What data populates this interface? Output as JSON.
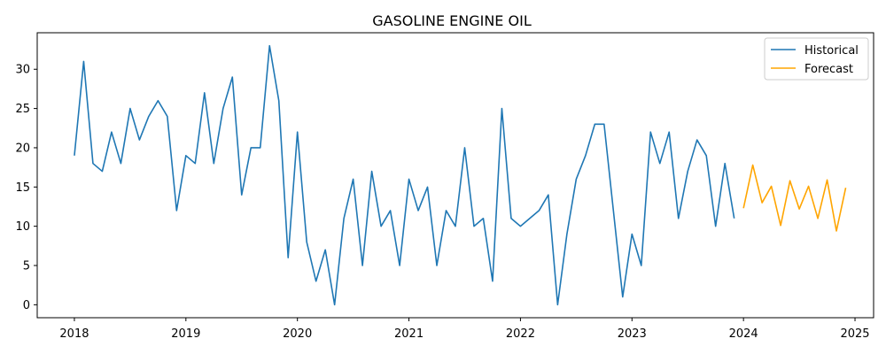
{
  "chart_data": {
    "type": "line",
    "title": "GASOLINE ENGINE OIL",
    "xlabel": "",
    "ylabel": "",
    "xlim": [
      "2017-09-01",
      "2025-03-01"
    ],
    "ylim": [
      -1.65,
      34.65
    ],
    "x_ticks": [
      "2018",
      "2019",
      "2020",
      "2021",
      "2022",
      "2023",
      "2024",
      "2025"
    ],
    "y_ticks": [
      0,
      5,
      10,
      15,
      20,
      25,
      30
    ],
    "grid": false,
    "legend": "top-right",
    "series": [
      {
        "name": "Historical",
        "color": "#1f77b4",
        "x": [
          "2018-01",
          "2018-02",
          "2018-03",
          "2018-04",
          "2018-05",
          "2018-06",
          "2018-07",
          "2018-08",
          "2018-09",
          "2018-10",
          "2018-11",
          "2018-12",
          "2019-01",
          "2019-02",
          "2019-03",
          "2019-04",
          "2019-05",
          "2019-06",
          "2019-07",
          "2019-08",
          "2019-09",
          "2019-10",
          "2019-11",
          "2019-12",
          "2020-01",
          "2020-02",
          "2020-03",
          "2020-04",
          "2020-05",
          "2020-06",
          "2020-07",
          "2020-08",
          "2020-09",
          "2020-10",
          "2020-11",
          "2020-12",
          "2021-01",
          "2021-02",
          "2021-03",
          "2021-04",
          "2021-05",
          "2021-06",
          "2021-07",
          "2021-08",
          "2021-09",
          "2021-10",
          "2021-11",
          "2021-12",
          "2022-01",
          "2022-02",
          "2022-03",
          "2022-04",
          "2022-05",
          "2022-06",
          "2022-07",
          "2022-08",
          "2022-09",
          "2022-10",
          "2022-11",
          "2022-12",
          "2023-01",
          "2023-02",
          "2023-03",
          "2023-04",
          "2023-05",
          "2023-06",
          "2023-07",
          "2023-08",
          "2023-09",
          "2023-10",
          "2023-11",
          "2023-12"
        ],
        "values": [
          19,
          31,
          18,
          17,
          22,
          18,
          25,
          21,
          24,
          26,
          24,
          12,
          19,
          18,
          27,
          18,
          25,
          29,
          14,
          20,
          20,
          33,
          26,
          6,
          22,
          8,
          3,
          7,
          0,
          11,
          16,
          5,
          17,
          10,
          12,
          5,
          16,
          12,
          15,
          5,
          12,
          10,
          20,
          10,
          11,
          3,
          25,
          11,
          10,
          11,
          12,
          14,
          0,
          9,
          16,
          19,
          23,
          23,
          12,
          1,
          9,
          5,
          22,
          18,
          22,
          11,
          17,
          21,
          19,
          10,
          18,
          11
        ]
      },
      {
        "name": "Forecast",
        "color": "#ffa500",
        "x": [
          "2024-01",
          "2024-02",
          "2024-03",
          "2024-04",
          "2024-05",
          "2024-06",
          "2024-07",
          "2024-08",
          "2024-09",
          "2024-10",
          "2024-11",
          "2024-12"
        ],
        "values": [
          12.3,
          17.8,
          13.0,
          15.1,
          10.1,
          15.8,
          12.2,
          15.1,
          11.0,
          15.9,
          9.4,
          14.9
        ]
      }
    ]
  }
}
